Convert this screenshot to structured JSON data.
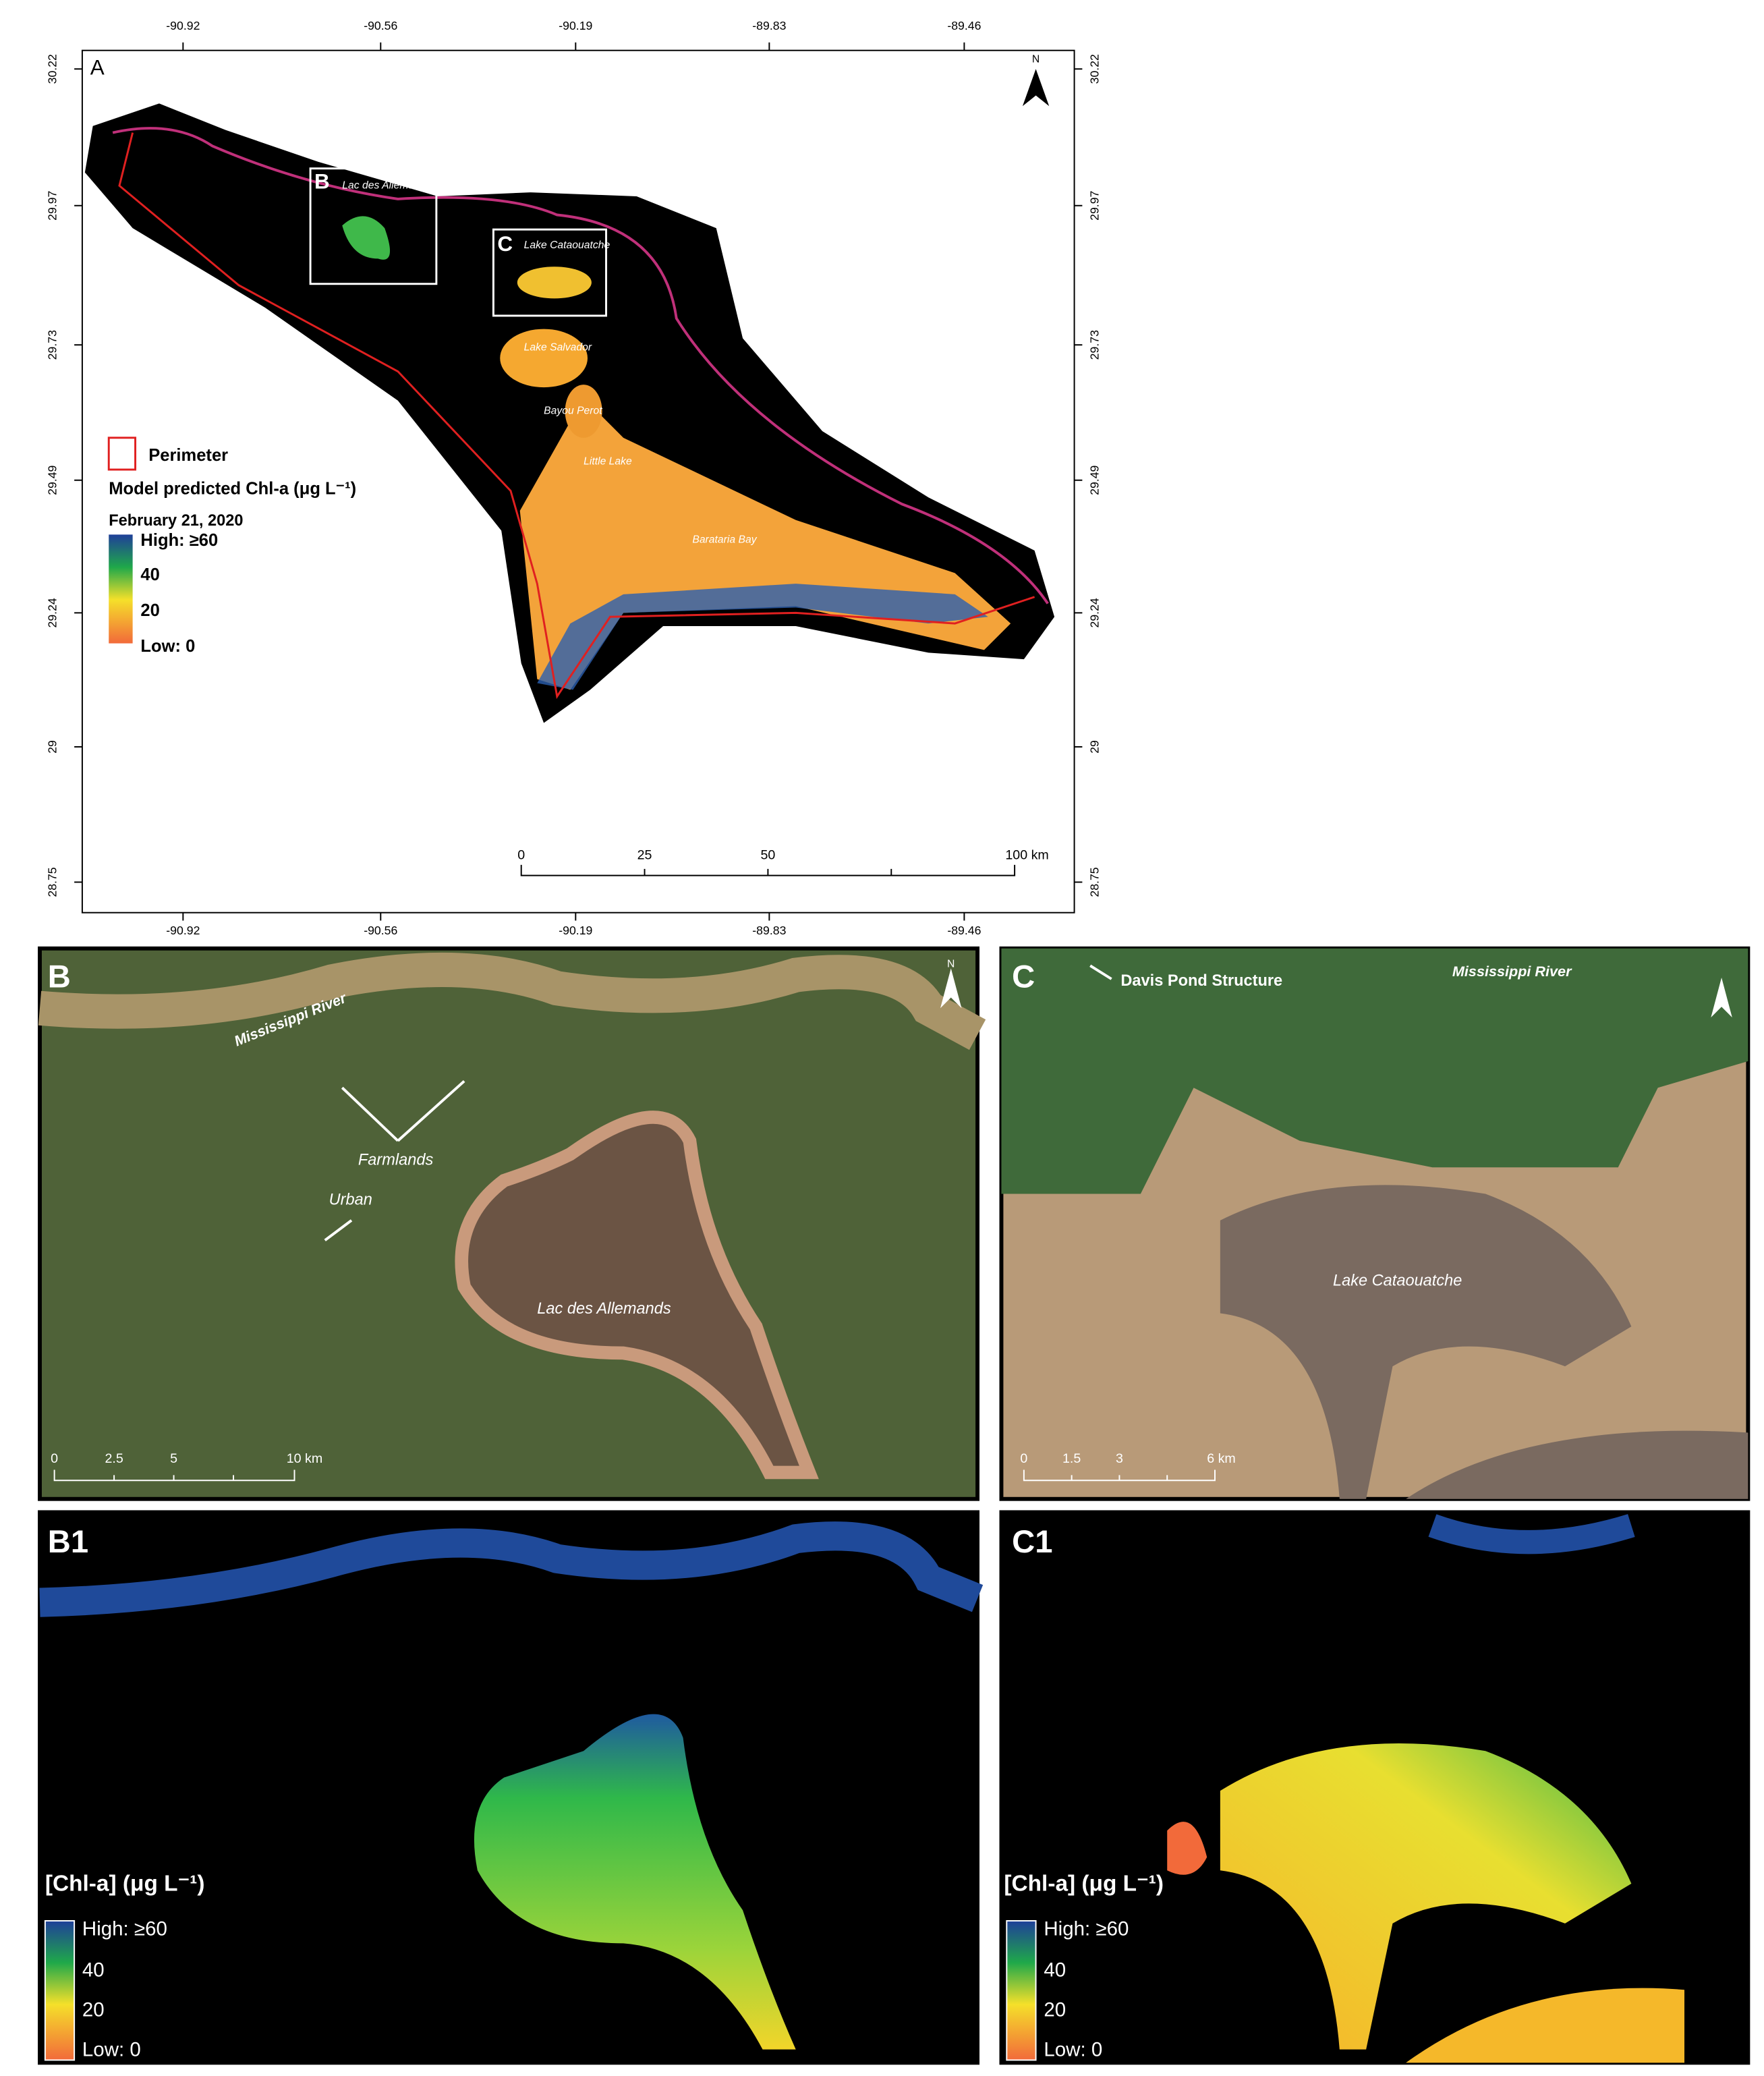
{
  "panel_a": {
    "label": "A",
    "north": "N",
    "lon_ticks": [
      "-90.92",
      "-90.56",
      "-90.19",
      "-89.83",
      "-89.46"
    ],
    "lat_ticks": [
      "30.22",
      "29.97",
      "29.73",
      "29.49",
      "29.24",
      "29",
      "28.75"
    ],
    "inset_labels": [
      "B",
      "C"
    ],
    "places": [
      "Lac des Allemands",
      "Lake Cataouatche",
      "Lake Salvador",
      "Bayou Perot",
      "Little Lake",
      "Barataria Bay"
    ],
    "legend": {
      "perimeter": "Perimeter",
      "title": "Model predicted Chl-a (μg L⁻¹)",
      "date": "February 21, 2020",
      "high": "High: ≥60",
      "mid_high": "40",
      "mid_low": "20",
      "low": "Low: 0"
    },
    "scale": [
      "0",
      "25",
      "50",
      "100 km"
    ]
  },
  "panel_b": {
    "label": "B",
    "north": "N",
    "river": "Mississippi River",
    "farmlands": "Farmlands",
    "urban": "Urban",
    "lake": "Lac des Allemands",
    "scale": [
      "0",
      "2.5",
      "5",
      "10 km"
    ]
  },
  "panel_c": {
    "label": "C",
    "structure": "Davis Pond Structure",
    "river": "Mississippi River",
    "lake": "Lake Cataouatche",
    "scale": [
      "0",
      "1.5",
      "3",
      "6 km"
    ]
  },
  "panel_b1": {
    "label": "B1",
    "legend": {
      "title": "[Chl-a] (μg L⁻¹)",
      "high": "High: ≥60",
      "mid_high": "40",
      "mid_low": "20",
      "low": "Low: 0"
    }
  },
  "panel_c1": {
    "label": "C1",
    "legend": {
      "title": "[Chl-a] (μg L⁻¹)",
      "high": "High: ≥60",
      "mid_high": "40",
      "mid_low": "20",
      "low": "Low: 0"
    }
  }
}
